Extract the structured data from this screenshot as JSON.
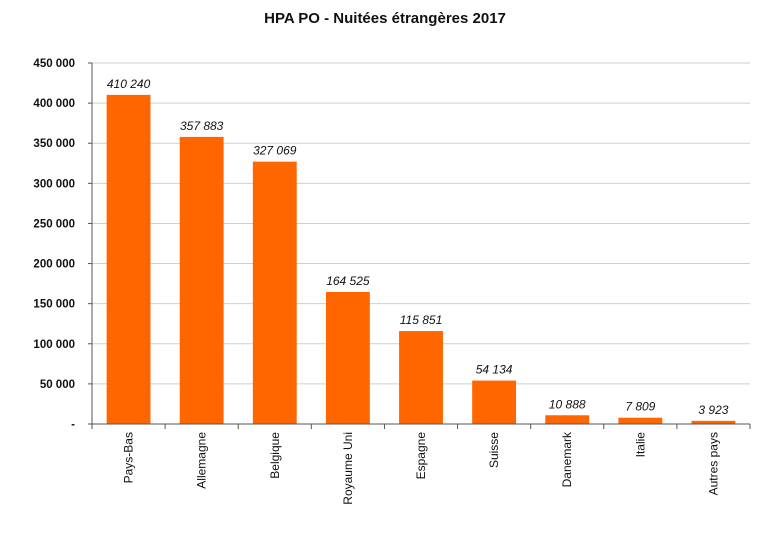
{
  "chart_data": {
    "type": "bar",
    "title": "HPA PO - Nuitées étrangères 2017",
    "xlabel": "",
    "ylabel": "",
    "categories": [
      "Pays-Bas",
      "Allemagne",
      "Belgique",
      "Royaume Uni",
      "Espagne",
      "Suisse",
      "Danemark",
      "Italie",
      "Autres pays"
    ],
    "values": [
      410240,
      357883,
      327069,
      164525,
      115851,
      54134,
      10888,
      7809,
      3923
    ],
    "data_labels": [
      "410 240",
      "357 883",
      "327 069",
      "164 525",
      "115 851",
      "54 134",
      "10 888",
      "7 809",
      "3 923"
    ],
    "y_ticks": [
      {
        "value": 0,
        "label": "-"
      },
      {
        "value": 50000,
        "label": "50 000"
      },
      {
        "value": 100000,
        "label": "100 000"
      },
      {
        "value": 150000,
        "label": "150 000"
      },
      {
        "value": 200000,
        "label": "200 000"
      },
      {
        "value": 250000,
        "label": "250 000"
      },
      {
        "value": 300000,
        "label": "300 000"
      },
      {
        "value": 350000,
        "label": "350 000"
      },
      {
        "value": 400000,
        "label": "400 000"
      },
      {
        "value": 450000,
        "label": "450 000"
      }
    ],
    "ylim": [
      0,
      450000
    ],
    "grid": true,
    "bar_color": "#ff6600"
  }
}
